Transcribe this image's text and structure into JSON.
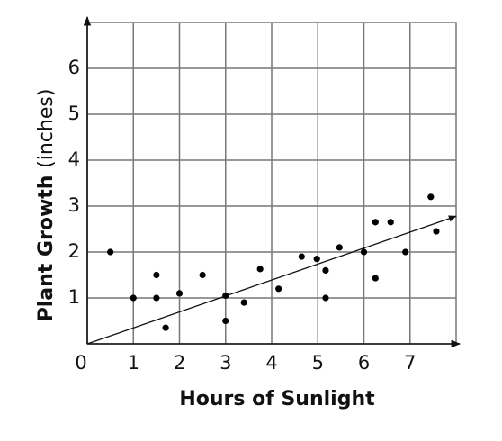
{
  "chart_data": {
    "type": "scatter",
    "xlabel": "Hours of Sunlight",
    "ylabel": "Plant Growth",
    "ylabel_unit": "(inches)",
    "x": [
      0.5,
      1,
      1.5,
      1.5,
      1.7,
      2.0,
      2.5,
      3.0,
      3.0,
      3.4,
      3.75,
      4.15,
      4.65,
      4.98,
      5.17,
      5.17,
      5.47,
      6.0,
      6.25,
      6.25,
      6.58,
      6.9,
      7.45,
      7.57
    ],
    "values": [
      2.0,
      1.0,
      1.5,
      1.0,
      0.35,
      1.1,
      1.5,
      1.05,
      0.5,
      0.9,
      1.63,
      1.2,
      1.9,
      1.85,
      1.6,
      1.0,
      2.1,
      2.0,
      2.65,
      1.43,
      2.65,
      2.0,
      3.2,
      2.45
    ],
    "color": "#000000",
    "trendline": {
      "x": [
        0,
        8
      ],
      "y": [
        0,
        2.78
      ]
    },
    "xlim": [
      0,
      8
    ],
    "ylim": [
      0,
      7
    ],
    "xticks": [
      0,
      1,
      2,
      3,
      4,
      5,
      6,
      7
    ],
    "yticks": [
      1,
      2,
      3,
      4,
      5,
      6
    ],
    "grid": true
  }
}
